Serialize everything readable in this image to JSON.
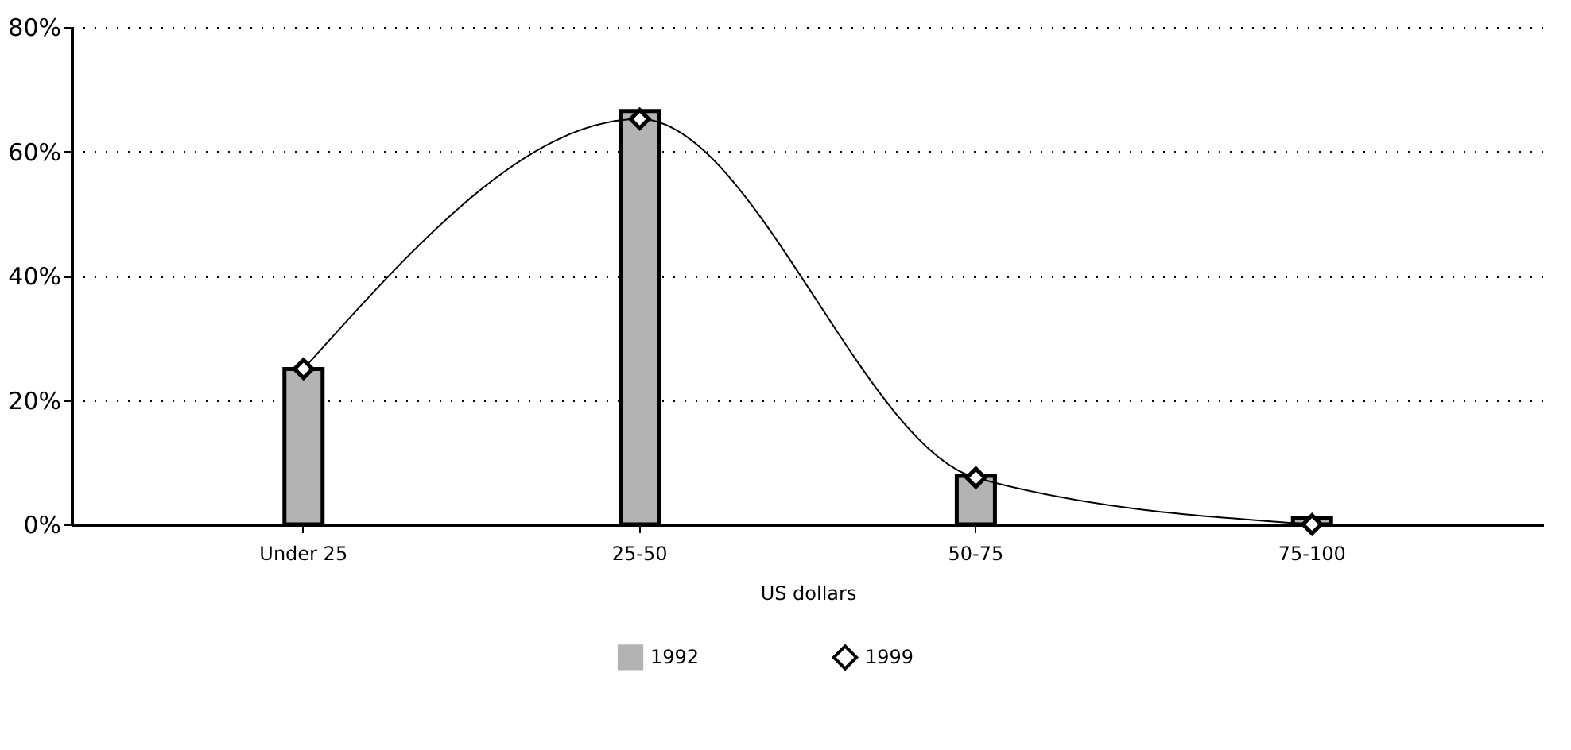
{
  "chart_data": {
    "type": "bar",
    "xlabel": "US dollars",
    "categories": [
      "Under 25",
      "25-50",
      "50-75",
      "75-100"
    ],
    "series": [
      {
        "name": "1992",
        "color": "#b3b3b3",
        "values": [
          25,
          66.5,
          7.8,
          1.1
        ]
      },
      {
        "name": "1999",
        "type": "line",
        "color": "#000000",
        "marker": "diamond",
        "values": [
          25,
          65.2,
          7.5,
          0
        ]
      }
    ],
    "ylim": [
      0,
      80
    ],
    "yticks": [
      {
        "value": 0,
        "label": "0%"
      },
      {
        "value": 20,
        "label": "20%"
      },
      {
        "value": 40,
        "label": "40%"
      },
      {
        "value": 60,
        "label": "60%"
      },
      {
        "value": 80,
        "label": "80%"
      }
    ],
    "grid": "y",
    "legend": "bottom"
  }
}
